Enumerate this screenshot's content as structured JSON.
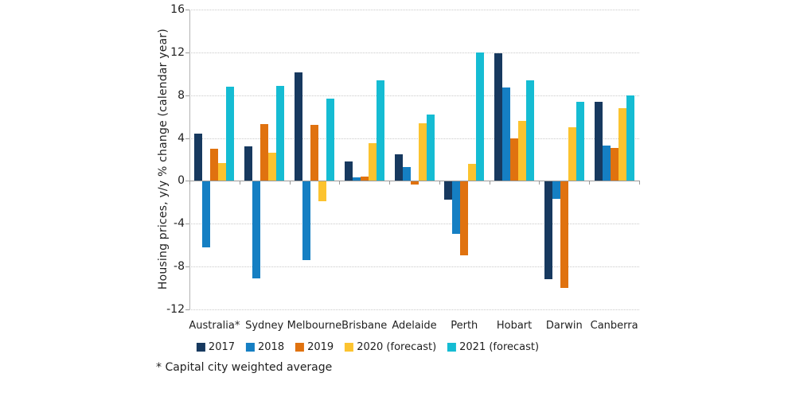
{
  "chart_data": {
    "type": "bar",
    "title": "",
    "xlabel": "",
    "ylabel": "Housing prices, y/y % change (calendar year)",
    "ylim": [
      -12,
      16
    ],
    "yticks": [
      16,
      12,
      8,
      4,
      0,
      -4,
      -8,
      -12
    ],
    "grid": "horizontal-dotted",
    "legend_position": "bottom",
    "categories": [
      "Australia*",
      "Sydney",
      "Melbourne",
      "Brisbane",
      "Adelaide",
      "Perth",
      "Hobart",
      "Darwin",
      "Canberra"
    ],
    "series": [
      {
        "name": "2017",
        "color": "#17395F",
        "values": [
          4.4,
          3.2,
          10.1,
          1.8,
          2.5,
          -1.7,
          11.9,
          -9.1,
          7.4
        ]
      },
      {
        "name": "2018",
        "color": "#157FC3",
        "values": [
          -6.1,
          -9.0,
          -7.3,
          0.3,
          1.3,
          -4.9,
          8.7,
          -1.6,
          3.3
        ]
      },
      {
        "name": "2019",
        "color": "#E0720F",
        "values": [
          3.0,
          5.3,
          5.2,
          0.4,
          -0.3,
          -6.9,
          4.0,
          -9.9,
          3.1
        ]
      },
      {
        "name": "2020 (forecast)",
        "color": "#FCC32F",
        "values": [
          1.7,
          2.6,
          -1.8,
          3.5,
          5.4,
          1.6,
          5.6,
          5.0,
          6.8
        ]
      },
      {
        "name": "2021 (forecast)",
        "color": "#15BCD3",
        "values": [
          8.8,
          8.9,
          7.7,
          9.4,
          6.2,
          12.0,
          9.4,
          7.4,
          8.0
        ]
      }
    ],
    "footnote": "* Capital city weighted average"
  },
  "colors": {
    "axis_line": "#9a9a9a",
    "grid_line": "#c9c9c9",
    "text": "#1f1f1f"
  }
}
